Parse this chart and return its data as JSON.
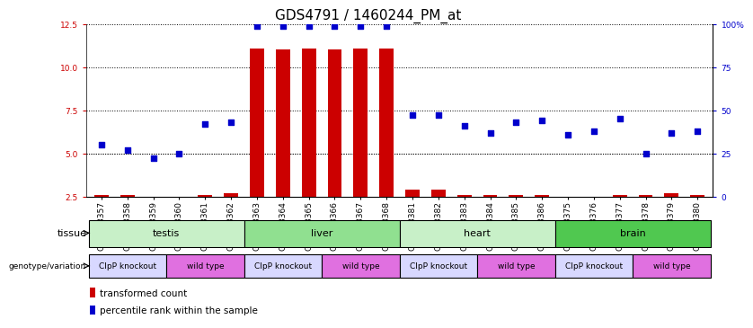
{
  "title": "GDS4791 / 1460244_PM_at",
  "samples": [
    "GSM988357",
    "GSM988358",
    "GSM988359",
    "GSM988360",
    "GSM988361",
    "GSM988362",
    "GSM988363",
    "GSM988364",
    "GSM988365",
    "GSM988366",
    "GSM988367",
    "GSM988368",
    "GSM988381",
    "GSM988382",
    "GSM988383",
    "GSM988384",
    "GSM988385",
    "GSM988386",
    "GSM988375",
    "GSM988376",
    "GSM988377",
    "GSM988378",
    "GSM988379",
    "GSM988380"
  ],
  "transformed_count": [
    2.6,
    2.6,
    2.5,
    2.5,
    2.6,
    2.7,
    11.1,
    11.0,
    11.1,
    11.0,
    11.1,
    11.1,
    2.9,
    2.9,
    2.6,
    2.6,
    2.6,
    2.6,
    2.5,
    2.5,
    2.6,
    2.6,
    2.7,
    2.6
  ],
  "percentile_rank": [
    30,
    27,
    22,
    25,
    42,
    43,
    99,
    99,
    99,
    99,
    99,
    99,
    47,
    47,
    41,
    37,
    43,
    44,
    36,
    38,
    45,
    25,
    37,
    38
  ],
  "ylim_left": [
    2.5,
    12.5
  ],
  "ylim_right": [
    0,
    100
  ],
  "yticks_left": [
    2.5,
    5.0,
    7.5,
    10.0,
    12.5
  ],
  "yticks_right": [
    0,
    25,
    50,
    75,
    100
  ],
  "ytick_labels_right": [
    "0",
    "25",
    "50",
    "75",
    "100%"
  ],
  "tissues": [
    {
      "label": "testis",
      "start": 0,
      "end": 6,
      "color": "#c8f0c8"
    },
    {
      "label": "liver",
      "start": 6,
      "end": 12,
      "color": "#90e090"
    },
    {
      "label": "heart",
      "start": 12,
      "end": 18,
      "color": "#c8f0c8"
    },
    {
      "label": "brain",
      "start": 18,
      "end": 24,
      "color": "#50c850"
    }
  ],
  "genotypes": [
    {
      "label": "ClpP knockout",
      "start": 0,
      "end": 3,
      "color": "#d8d8ff"
    },
    {
      "label": "wild type",
      "start": 3,
      "end": 6,
      "color": "#e070e0"
    },
    {
      "label": "ClpP knockout",
      "start": 6,
      "end": 9,
      "color": "#d8d8ff"
    },
    {
      "label": "wild type",
      "start": 9,
      "end": 12,
      "color": "#e070e0"
    },
    {
      "label": "ClpP knockout",
      "start": 12,
      "end": 15,
      "color": "#d8d8ff"
    },
    {
      "label": "wild type",
      "start": 15,
      "end": 18,
      "color": "#e070e0"
    },
    {
      "label": "ClpP knockout",
      "start": 18,
      "end": 21,
      "color": "#d8d8ff"
    },
    {
      "label": "wild type",
      "start": 21,
      "end": 24,
      "color": "#e070e0"
    }
  ],
  "bar_color": "#cc0000",
  "dot_color": "#0000cc",
  "bar_width": 0.55,
  "dot_size": 25,
  "background_color": "#ffffff",
  "title_fontsize": 11,
  "tick_fontsize": 6.5,
  "label_fontsize": 8
}
